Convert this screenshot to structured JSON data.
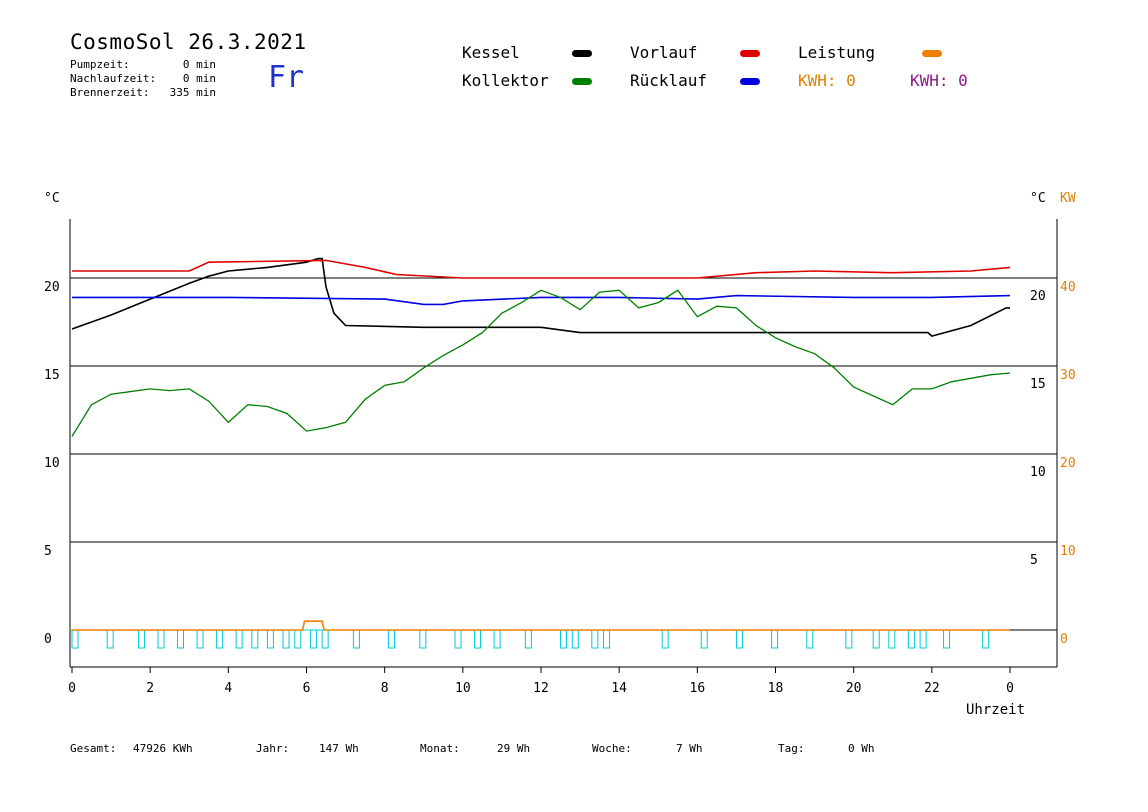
{
  "header": {
    "title": "CosmoSol 26.3.2021",
    "weekday": "Fr",
    "stats": [
      {
        "label": "Pumpzeit:",
        "value": "0 min"
      },
      {
        "label": "Nachlaufzeit:",
        "value": "0 min"
      },
      {
        "label": "Brennerzeit:",
        "value": "335 min"
      }
    ]
  },
  "legend": [
    {
      "label": "Kessel",
      "color": "#000000"
    },
    {
      "label": "Vorlauf",
      "color": "#e00000"
    },
    {
      "label": "Leistung",
      "color": "#f08000"
    },
    {
      "label": "Kollektor",
      "color": "#008000"
    },
    {
      "label": "Rücklauf",
      "color": "#0000e0"
    }
  ],
  "kwh": [
    {
      "text": "KWH: 0",
      "color": "#e08000"
    },
    {
      "text": "KWH: 0",
      "color": "#8a1a8a"
    }
  ],
  "footer": {
    "items": [
      {
        "label": "Gesamt:",
        "value": "47926 KWh"
      },
      {
        "label": "Jahr:",
        "value": "147 Wh"
      },
      {
        "label": "Monat:",
        "value": "29 Wh"
      },
      {
        "label": "Woche:",
        "value": "7 Wh"
      },
      {
        "label": "Tag:",
        "value": "0 Wh"
      }
    ]
  },
  "chart_data": {
    "type": "line",
    "xlabel": "Uhrzeit",
    "y_unit_left": "°C",
    "y_unit_right": "°C",
    "y2_unit": "KW",
    "xlim": [
      0,
      24
    ],
    "ylim": [
      -2,
      24
    ],
    "x_ticks": [
      "0",
      "2",
      "4",
      "6",
      "8",
      "10",
      "12",
      "14",
      "16",
      "18",
      "20",
      "22",
      "0"
    ],
    "y_ticks_left": [
      "0",
      "5",
      "10",
      "15",
      "20"
    ],
    "y_ticks_right": [
      "5",
      "10",
      "15",
      "20"
    ],
    "y2_ticks": [
      "0",
      "10",
      "20",
      "30",
      "40"
    ],
    "grid": "horizontal",
    "series": [
      {
        "name": "Kessel",
        "color": "#000000",
        "x": [
          0,
          1,
          2,
          3,
          3.5,
          4,
          5,
          6,
          6.3,
          6.4,
          6.5,
          6.7,
          7,
          9,
          12,
          13,
          16,
          18,
          20,
          21.9,
          22,
          23,
          23.9,
          24
        ],
        "y": [
          17.1,
          17.9,
          18.8,
          19.7,
          20.1,
          20.4,
          20.6,
          20.9,
          21.1,
          21.1,
          19.5,
          18,
          17.3,
          17.2,
          17.2,
          16.9,
          16.9,
          16.9,
          16.9,
          16.9,
          16.7,
          17.3,
          18.3,
          18.3
        ]
      },
      {
        "name": "Vorlauf",
        "color": "#e00000",
        "x": [
          0,
          3,
          3.5,
          6.5,
          7.5,
          8.3,
          10,
          15,
          16,
          17.5,
          19,
          21,
          23,
          24
        ],
        "y": [
          20.4,
          20.4,
          20.9,
          21.0,
          20.6,
          20.2,
          20.0,
          20.0,
          20.0,
          20.3,
          20.4,
          20.3,
          20.4,
          20.6
        ]
      },
      {
        "name": "Rücklauf",
        "color": "#0000e0",
        "x": [
          0,
          3,
          4,
          8,
          9,
          9.5,
          10,
          12,
          14,
          16,
          17,
          20,
          22,
          24
        ],
        "y": [
          18.9,
          18.9,
          18.9,
          18.8,
          18.5,
          18.5,
          18.7,
          18.9,
          18.9,
          18.8,
          19.0,
          18.9,
          18.9,
          19.0
        ]
      },
      {
        "name": "Kollektor",
        "color": "#008000",
        "x": [
          0,
          0.5,
          1,
          2,
          2.5,
          3,
          3.5,
          4,
          4.5,
          5,
          5.5,
          6,
          6.5,
          7,
          7.5,
          8,
          8.5,
          9,
          9.5,
          10,
          10.5,
          11,
          11.5,
          12,
          12.5,
          13,
          13.5,
          14,
          14.5,
          15,
          15.5,
          16,
          16.5,
          17,
          17.5,
          18,
          18.5,
          19,
          19.5,
          20,
          20.5,
          21,
          21.5,
          22,
          22.5,
          23,
          23.5,
          24
        ],
        "y": [
          11,
          12.8,
          13.4,
          13.7,
          13.6,
          13.7,
          13.0,
          11.8,
          12.8,
          12.7,
          12.3,
          11.3,
          11.5,
          11.8,
          13.1,
          13.9,
          14.1,
          14.9,
          15.6,
          16.2,
          16.9,
          18.0,
          18.6,
          19.3,
          18.9,
          18.2,
          19.2,
          19.3,
          18.3,
          18.6,
          19.3,
          17.8,
          18.4,
          18.3,
          17.3,
          16.6,
          16.1,
          15.7,
          14.9,
          13.8,
          13.3,
          12.8,
          13.7,
          13.7,
          14.1,
          14.3,
          14.5,
          14.6
        ]
      },
      {
        "name": "Leistung",
        "color": "#f08000",
        "x": [
          0,
          5.9,
          5.95,
          6.4,
          6.45,
          24
        ],
        "y": [
          0,
          0,
          0.5,
          0.5,
          0,
          0
        ]
      }
    ],
    "pump_pulses": {
      "color": "#00c8d8",
      "x": [
        0,
        0.9,
        1.7,
        2.2,
        2.7,
        3.2,
        3.7,
        4.2,
        4.6,
        5.0,
        5.4,
        5.7,
        6.1,
        6.4,
        7.2,
        8.1,
        8.9,
        9.8,
        10.3,
        10.8,
        11.6,
        12.5,
        12.8,
        13.3,
        13.6,
        15.1,
        16.1,
        17.0,
        17.9,
        18.8,
        19.8,
        20.5,
        20.9,
        21.4,
        21.7,
        22.3,
        23.3
      ]
    }
  }
}
